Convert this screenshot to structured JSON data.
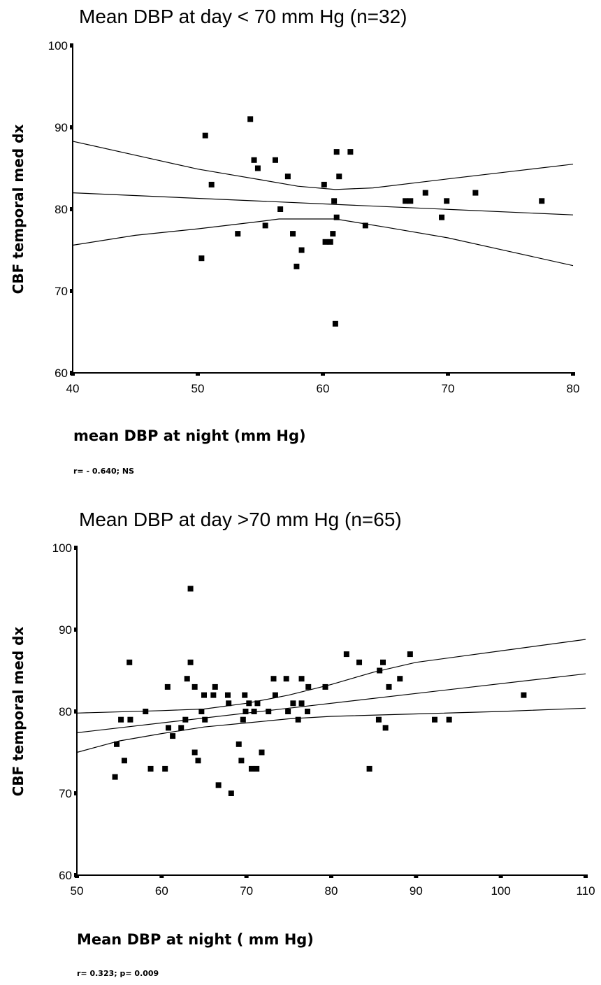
{
  "chart_data": [
    {
      "type": "scatter",
      "title": "Mean DBP at day < 70 mm Hg (n=32)",
      "xlabel": "mean DBP at night (mm Hg)",
      "ylabel": "CBF temporal med dx",
      "stat_text": "r= - 0.640; NS",
      "xlim": [
        40,
        80
      ],
      "ylim": [
        60,
        100
      ],
      "x_ticks": [
        "40",
        "50",
        "60",
        "70",
        "80"
      ],
      "y_ticks": [
        "60",
        "70",
        "80",
        "90",
        "100"
      ],
      "points": [
        [
          50.3,
          74
        ],
        [
          50.6,
          89
        ],
        [
          51.1,
          83
        ],
        [
          53.2,
          77
        ],
        [
          54.2,
          91
        ],
        [
          54.5,
          86
        ],
        [
          54.8,
          85
        ],
        [
          55.4,
          78
        ],
        [
          56.2,
          86
        ],
        [
          56.6,
          80
        ],
        [
          57.2,
          84
        ],
        [
          57.6,
          77
        ],
        [
          57.9,
          73
        ],
        [
          58.3,
          75
        ],
        [
          60.1,
          83
        ],
        [
          60.2,
          76
        ],
        [
          60.6,
          76
        ],
        [
          60.8,
          77
        ],
        [
          60.9,
          81
        ],
        [
          61.1,
          87
        ],
        [
          61.1,
          79
        ],
        [
          61.3,
          84
        ],
        [
          61.0,
          66
        ],
        [
          62.2,
          87
        ],
        [
          63.4,
          78
        ],
        [
          66.6,
          81
        ],
        [
          67.0,
          81
        ],
        [
          68.2,
          82
        ],
        [
          69.5,
          79
        ],
        [
          69.9,
          81
        ],
        [
          72.2,
          82
        ],
        [
          77.5,
          81
        ]
      ],
      "regression_line": [
        [
          40,
          82.0
        ],
        [
          80,
          79.3
        ]
      ],
      "ci_upper": [
        [
          40,
          88.3
        ],
        [
          45,
          86.6
        ],
        [
          50,
          84.9
        ],
        [
          55,
          83.6
        ],
        [
          58,
          82.8
        ],
        [
          61,
          82.4
        ],
        [
          64,
          82.6
        ],
        [
          70,
          83.7
        ],
        [
          75,
          84.6
        ],
        [
          80,
          85.5
        ]
      ],
      "ci_lower": [
        [
          40,
          75.6
        ],
        [
          45,
          76.8
        ],
        [
          50,
          77.6
        ],
        [
          55,
          78.5
        ],
        [
          56.5,
          78.8
        ],
        [
          61,
          78.8
        ],
        [
          65,
          77.8
        ],
        [
          70,
          76.5
        ],
        [
          75,
          74.8
        ],
        [
          80,
          73.1
        ]
      ]
    },
    {
      "type": "scatter",
      "title": "Mean DBP at day >70 mm Hg (n=65)",
      "xlabel": "Mean DBP at night ( mm Hg)",
      "ylabel": "CBF temporal med dx",
      "stat_text": "r= 0.323; p= 0.009",
      "xlim": [
        50,
        110
      ],
      "ylim": [
        60,
        100
      ],
      "x_ticks": [
        "50",
        "60",
        "70",
        "80",
        "90",
        "100",
        "110"
      ],
      "y_ticks": [
        "60",
        "70",
        "80",
        "90",
        "100"
      ],
      "points": [
        [
          54.5,
          72
        ],
        [
          54.7,
          76
        ],
        [
          55.2,
          79
        ],
        [
          55.6,
          74
        ],
        [
          56.2,
          86
        ],
        [
          56.3,
          79
        ],
        [
          58.1,
          80
        ],
        [
          58.7,
          73
        ],
        [
          60.4,
          73
        ],
        [
          60.7,
          83
        ],
        [
          60.8,
          78
        ],
        [
          61.3,
          77
        ],
        [
          62.3,
          78
        ],
        [
          62.8,
          79
        ],
        [
          63.0,
          84
        ],
        [
          63.4,
          95
        ],
        [
          63.4,
          86
        ],
        [
          63.9,
          83
        ],
        [
          63.9,
          75
        ],
        [
          64.3,
          74
        ],
        [
          64.7,
          80
        ],
        [
          65.0,
          82
        ],
        [
          65.1,
          79
        ],
        [
          66.1,
          82
        ],
        [
          66.3,
          83
        ],
        [
          66.7,
          71
        ],
        [
          67.8,
          82
        ],
        [
          67.9,
          81
        ],
        [
          68.2,
          70
        ],
        [
          69.1,
          76
        ],
        [
          69.4,
          74
        ],
        [
          69.6,
          79
        ],
        [
          69.8,
          82
        ],
        [
          69.9,
          80
        ],
        [
          70.3,
          81
        ],
        [
          70.6,
          73
        ],
        [
          70.9,
          80
        ],
        [
          71.2,
          73
        ],
        [
          71.3,
          81
        ],
        [
          71.8,
          75
        ],
        [
          72.6,
          80
        ],
        [
          73.2,
          84
        ],
        [
          73.4,
          82
        ],
        [
          74.7,
          84
        ],
        [
          74.9,
          80
        ],
        [
          75.5,
          81
        ],
        [
          76.1,
          79
        ],
        [
          76.5,
          84
        ],
        [
          76.5,
          81
        ],
        [
          77.2,
          80
        ],
        [
          77.3,
          83
        ],
        [
          79.3,
          83
        ],
        [
          81.8,
          87
        ],
        [
          83.3,
          86
        ],
        [
          84.5,
          73
        ],
        [
          85.6,
          79
        ],
        [
          85.7,
          85
        ],
        [
          86.1,
          86
        ],
        [
          86.4,
          78
        ],
        [
          86.8,
          83
        ],
        [
          88.1,
          84
        ],
        [
          89.3,
          87
        ],
        [
          92.2,
          79
        ],
        [
          93.9,
          79
        ],
        [
          102.7,
          82
        ]
      ],
      "regression_line": [
        [
          50,
          77.4
        ],
        [
          110,
          84.6
        ]
      ],
      "ci_upper": [
        [
          50,
          79.8
        ],
        [
          60,
          80.1
        ],
        [
          65,
          80.3
        ],
        [
          70,
          81.0
        ],
        [
          75,
          82.0
        ],
        [
          80,
          83.3
        ],
        [
          85,
          84.8
        ],
        [
          90,
          86.0
        ],
        [
          100,
          87.4
        ],
        [
          110,
          88.8
        ]
      ],
      "ci_lower": [
        [
          50,
          75.0
        ],
        [
          55,
          76.4
        ],
        [
          60,
          77.3
        ],
        [
          65,
          78.1
        ],
        [
          70,
          78.6
        ],
        [
          75,
          79.1
        ],
        [
          80,
          79.4
        ],
        [
          90,
          79.7
        ],
        [
          100,
          80.0
        ],
        [
          110,
          80.4
        ]
      ]
    }
  ]
}
